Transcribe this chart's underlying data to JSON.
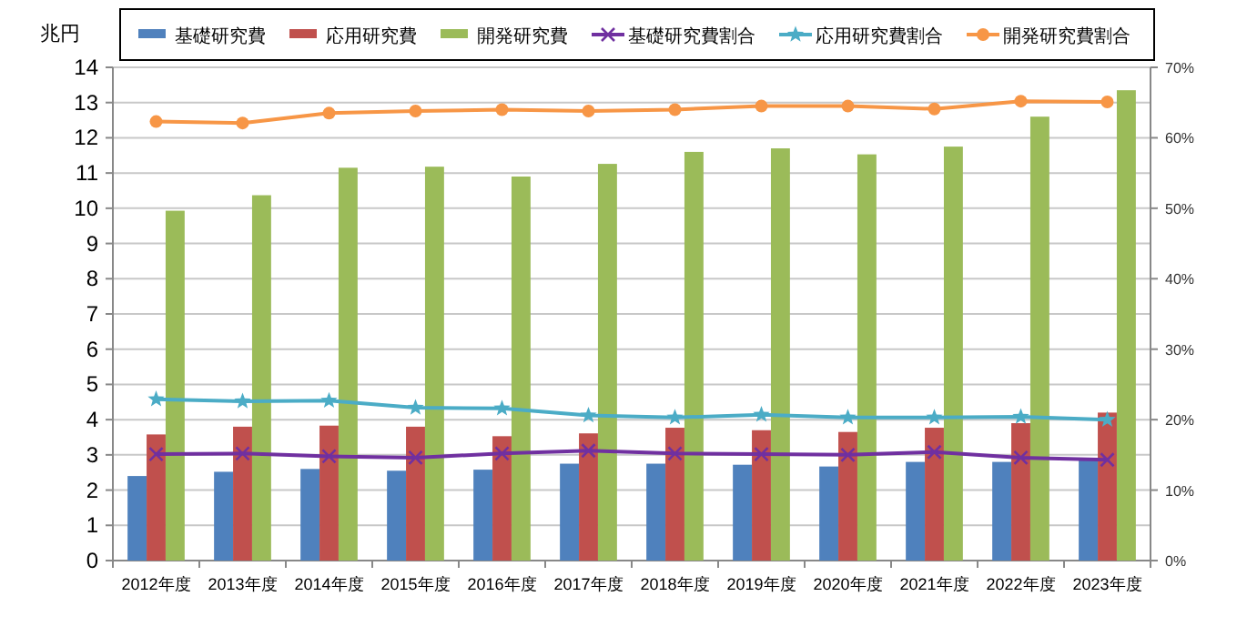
{
  "chart_data": {
    "type": "bar",
    "ylabel": "兆円",
    "categories": [
      "2012年度",
      "2013年度",
      "2014年度",
      "2015年度",
      "2016年度",
      "2017年度",
      "2018年度",
      "2019年度",
      "2020年度",
      "2021年度",
      "2022年度",
      "2023年度"
    ],
    "series": [
      {
        "name": "基礎研究費",
        "type": "bar",
        "color": "#4f81bd",
        "values": [
          2.4,
          2.52,
          2.6,
          2.55,
          2.58,
          2.75,
          2.75,
          2.72,
          2.67,
          2.8,
          2.8,
          2.9
        ]
      },
      {
        "name": "応用研究費",
        "type": "bar",
        "color": "#c0504d",
        "values": [
          3.58,
          3.8,
          3.83,
          3.8,
          3.53,
          3.61,
          3.77,
          3.7,
          3.65,
          3.77,
          3.9,
          4.2
        ]
      },
      {
        "name": "開発研究費",
        "type": "bar",
        "color": "#9bbb59",
        "values": [
          9.93,
          10.37,
          11.15,
          11.18,
          10.9,
          11.26,
          11.6,
          11.7,
          11.53,
          11.75,
          12.6,
          13.35
        ]
      },
      {
        "name": "基礎研究費割合",
        "type": "line",
        "axis": "y2",
        "marker": "cross",
        "color": "#7030a0",
        "values": [
          15.1,
          15.2,
          14.8,
          14.6,
          15.2,
          15.6,
          15.2,
          15.1,
          15.0,
          15.4,
          14.6,
          14.3
        ]
      },
      {
        "name": "応用研究費割合",
        "type": "line",
        "axis": "y2",
        "marker": "star",
        "color": "#4bacc6",
        "values": [
          22.9,
          22.6,
          22.7,
          21.7,
          21.6,
          20.6,
          20.3,
          20.7,
          20.3,
          20.3,
          20.4,
          20.0
        ]
      },
      {
        "name": "開発研究費割合",
        "type": "line",
        "axis": "y2",
        "marker": "circle",
        "color": "#f79646",
        "values": [
          62.3,
          62.1,
          63.5,
          63.8,
          64.0,
          63.8,
          64.0,
          64.5,
          64.5,
          64.1,
          65.2,
          65.1
        ]
      }
    ],
    "ylim": [
      0,
      14
    ],
    "yticks": [
      0,
      1,
      2,
      3,
      4,
      5,
      6,
      7,
      8,
      9,
      10,
      11,
      12,
      13,
      14
    ],
    "y2lim": [
      0,
      70
    ],
    "y2ticks": [
      {
        "value": 0,
        "label": "0%"
      },
      {
        "value": 10,
        "label": "10%"
      },
      {
        "value": 20,
        "label": "20%"
      },
      {
        "value": 30,
        "label": "30%"
      },
      {
        "value": 40,
        "label": "40%"
      },
      {
        "value": 50,
        "label": "50%"
      },
      {
        "value": 60,
        "label": "60%"
      },
      {
        "value": 70,
        "label": "70%"
      }
    ],
    "grid": "y",
    "legend": "top"
  }
}
